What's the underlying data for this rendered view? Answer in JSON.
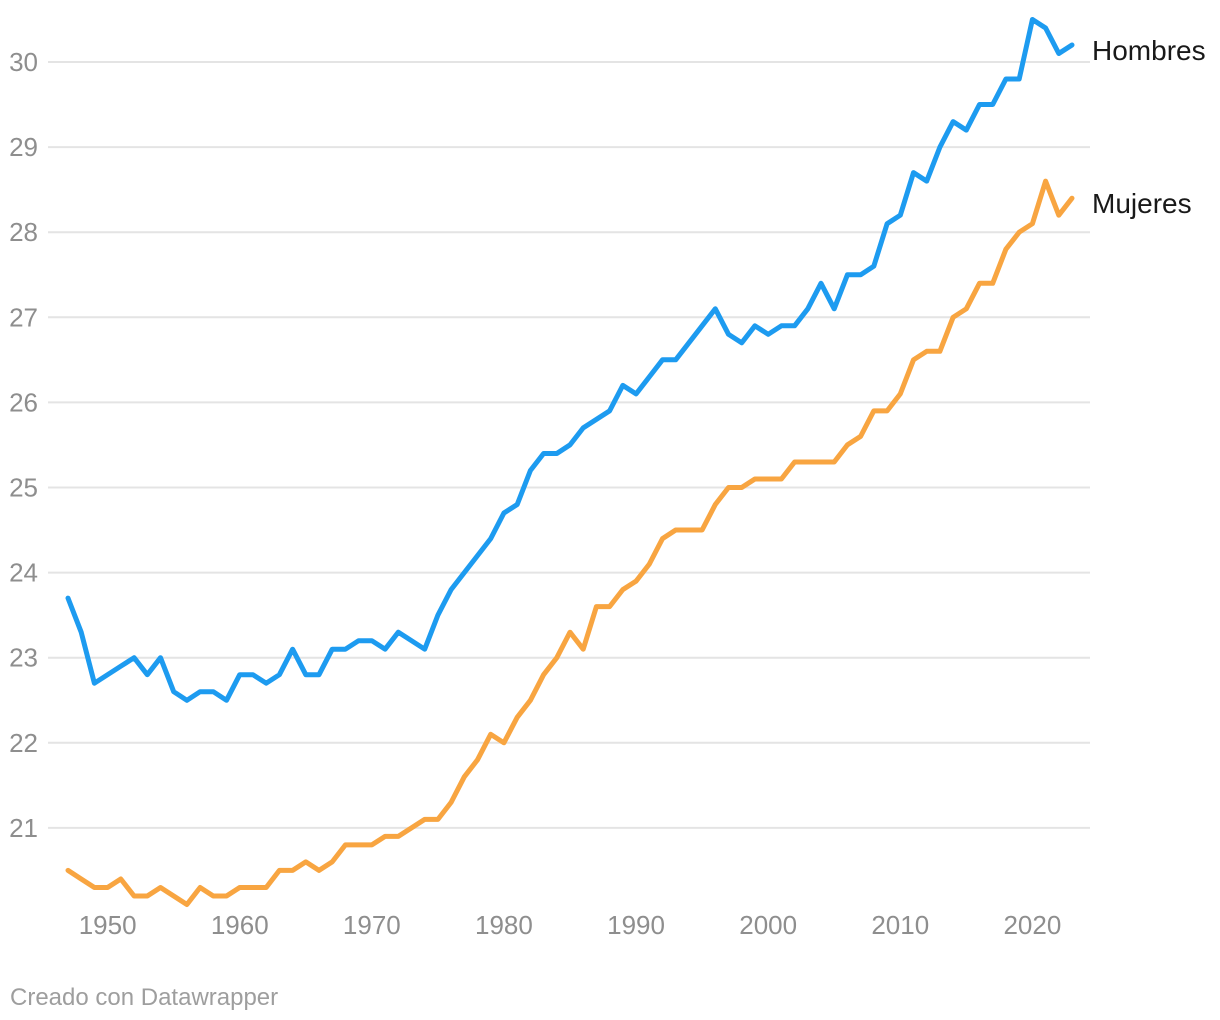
{
  "chart_data": {
    "type": "line",
    "title": "",
    "xlabel": "",
    "ylabel": "",
    "grid": "horizontal",
    "legend_position": "end-of-line",
    "xlim": [
      1947,
      2023
    ],
    "ylim": [
      20.0,
      30.6
    ],
    "x_ticks": [
      1950,
      1960,
      1970,
      1980,
      1990,
      2000,
      2010,
      2020
    ],
    "y_ticks": [
      21,
      22,
      23,
      24,
      25,
      26,
      27,
      28,
      29,
      30
    ],
    "x": [
      1947,
      1948,
      1949,
      1950,
      1951,
      1952,
      1953,
      1954,
      1955,
      1956,
      1957,
      1958,
      1959,
      1960,
      1961,
      1962,
      1963,
      1964,
      1965,
      1966,
      1967,
      1968,
      1969,
      1970,
      1971,
      1972,
      1973,
      1974,
      1975,
      1976,
      1977,
      1978,
      1979,
      1980,
      1981,
      1982,
      1983,
      1984,
      1985,
      1986,
      1987,
      1988,
      1989,
      1990,
      1991,
      1992,
      1993,
      1994,
      1995,
      1996,
      1997,
      1998,
      1999,
      2000,
      2001,
      2002,
      2003,
      2004,
      2005,
      2006,
      2007,
      2008,
      2009,
      2010,
      2011,
      2012,
      2013,
      2014,
      2015,
      2016,
      2017,
      2018,
      2019,
      2020,
      2021,
      2022,
      2023
    ],
    "series": [
      {
        "name": "Hombres",
        "color": "#1d9bf0",
        "values": [
          23.7,
          23.3,
          22.7,
          22.8,
          22.9,
          23.0,
          22.8,
          23.0,
          22.6,
          22.5,
          22.6,
          22.6,
          22.5,
          22.8,
          22.8,
          22.7,
          22.8,
          23.1,
          22.8,
          22.8,
          23.1,
          23.1,
          23.2,
          23.2,
          23.1,
          23.3,
          23.2,
          23.1,
          23.5,
          23.8,
          24.0,
          24.2,
          24.4,
          24.7,
          24.8,
          25.2,
          25.4,
          25.4,
          25.5,
          25.7,
          25.8,
          25.9,
          26.2,
          26.1,
          26.3,
          26.5,
          26.5,
          26.7,
          26.9,
          27.1,
          26.8,
          26.7,
          26.9,
          26.8,
          26.9,
          26.9,
          27.1,
          27.4,
          27.1,
          27.5,
          27.5,
          27.6,
          28.1,
          28.2,
          28.7,
          28.6,
          29.0,
          29.3,
          29.2,
          29.5,
          29.5,
          29.8,
          29.8,
          30.5,
          30.4,
          30.1,
          30.2
        ]
      },
      {
        "name": "Mujeres",
        "color": "#f8a541",
        "values": [
          20.5,
          20.4,
          20.3,
          20.3,
          20.4,
          20.2,
          20.2,
          20.3,
          20.2,
          20.1,
          20.3,
          20.2,
          20.2,
          20.3,
          20.3,
          20.3,
          20.5,
          20.5,
          20.6,
          20.5,
          20.6,
          20.8,
          20.8,
          20.8,
          20.9,
          20.9,
          21.0,
          21.1,
          21.1,
          21.3,
          21.6,
          21.8,
          22.1,
          22.0,
          22.3,
          22.5,
          22.8,
          23.0,
          23.3,
          23.1,
          23.6,
          23.6,
          23.8,
          23.9,
          24.1,
          24.4,
          24.5,
          24.5,
          24.5,
          24.8,
          25.0,
          25.0,
          25.1,
          25.1,
          25.1,
          25.3,
          25.3,
          25.3,
          25.3,
          25.5,
          25.6,
          25.9,
          25.9,
          26.1,
          26.5,
          26.6,
          26.6,
          27.0,
          27.1,
          27.4,
          27.4,
          27.8,
          28.0,
          28.1,
          28.6,
          28.2,
          28.4
        ]
      }
    ]
  },
  "colors": {
    "background": "#ffffff",
    "grid": "#e4e4e4",
    "tick_text": "#8e8e8e",
    "series_label_text": "#191919",
    "footer_text": "#9e9e9e"
  },
  "footer": {
    "credit": "Creado con Datawrapper"
  }
}
